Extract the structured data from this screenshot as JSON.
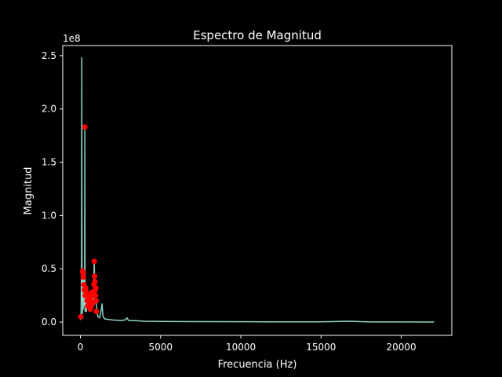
{
  "colors": {
    "background": "#000000",
    "foreground": "#ffffff",
    "spectrum_line": "#8dd3c7",
    "peak_markers": "#ff0000"
  },
  "chart_data": {
    "type": "line",
    "title": "Espectro de Magnitud",
    "xlabel": "Frecuencia (Hz)",
    "ylabel": "Magnitud",
    "y_offset_label": "1e8",
    "xlim": [
      -1102.5,
      23152.5
    ],
    "ylim": [
      -12500000,
      259500000
    ],
    "x_ticks": [
      0,
      5000,
      10000,
      15000,
      20000
    ],
    "x_tick_labels": [
      "0",
      "5000",
      "10000",
      "15000",
      "20000"
    ],
    "y_ticks": [
      0,
      50000000,
      100000000,
      150000000,
      200000000,
      250000000
    ],
    "y_tick_labels": [
      "0.0",
      "0.5",
      "1.0",
      "1.5",
      "2.0",
      "2.5"
    ],
    "grid": false,
    "series": [
      {
        "style": "line",
        "x": [
          0,
          20,
          40,
          55,
          70,
          85,
          100,
          115,
          130,
          145,
          160,
          175,
          190,
          205,
          220,
          235,
          250,
          262,
          275,
          290,
          310,
          330,
          350,
          370,
          400,
          450,
          500,
          550,
          600,
          650,
          700,
          750,
          800,
          830,
          860,
          880,
          900,
          930,
          960,
          1000,
          1050,
          1100,
          1200,
          1300,
          1350,
          1400,
          1500,
          1700,
          2000,
          2500,
          2800,
          2900,
          3000,
          3500,
          4000,
          5000,
          6000,
          8000,
          10000,
          12000,
          15000,
          16800,
          18000,
          20000,
          22050
        ],
        "y": [
          2000000,
          4000000,
          10000000,
          35000000,
          58000000,
          248000000,
          20000000,
          48000000,
          8000000,
          45000000,
          30000000,
          12000000,
          40000000,
          25000000,
          20000000,
          35000000,
          15000000,
          30000000,
          180000000,
          10000000,
          35000000,
          15000000,
          25000000,
          10000000,
          22000000,
          15000000,
          20000000,
          12000000,
          18000000,
          10000000,
          25000000,
          15000000,
          20000000,
          30000000,
          57000000,
          40000000,
          25000000,
          18000000,
          22000000,
          15000000,
          8000000,
          5000000,
          4000000,
          12000000,
          17000000,
          6000000,
          3000000,
          2500000,
          2000000,
          1500000,
          2000000,
          4000000,
          1500000,
          1200000,
          800000,
          600000,
          500000,
          400000,
          300000,
          250000,
          200000,
          800000,
          150000,
          100000,
          50000
        ]
      },
      {
        "style": "markers",
        "x": [
          25,
          130,
          155,
          175,
          210,
          240,
          275,
          300,
          330,
          370,
          410,
          450,
          490,
          530,
          570,
          610,
          650,
          690,
          730,
          770,
          810,
          840,
          860,
          880,
          900,
          920,
          940,
          960,
          980,
          990
        ],
        "y": [
          5000000,
          48000000,
          46000000,
          42000000,
          35000000,
          30000000,
          183000000,
          25000000,
          32000000,
          28000000,
          20000000,
          15000000,
          25000000,
          18000000,
          22000000,
          12000000,
          20000000,
          15000000,
          28000000,
          18000000,
          25000000,
          35000000,
          57000000,
          43000000,
          38000000,
          30000000,
          25000000,
          32000000,
          20000000,
          10000000
        ]
      }
    ]
  }
}
